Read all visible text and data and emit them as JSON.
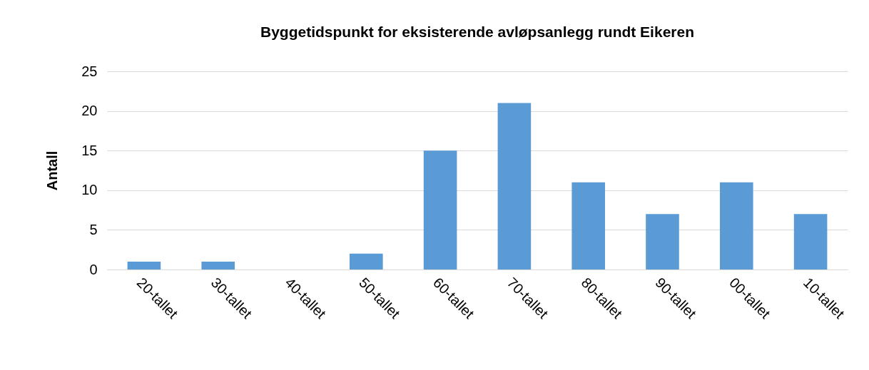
{
  "chart_data": {
    "type": "bar",
    "title": "Byggetidspunkt for eksisterende avløpsanlegg rundt Eikeren",
    "ylabel": "Antall",
    "categories": [
      "20-tallet",
      "30-tallet",
      "40-tallet",
      "50-tallet",
      "60-tallet",
      "70-tallet",
      "80-tallet",
      "90-tallet",
      "00-tallet",
      "10-tallet"
    ],
    "values": [
      1,
      1,
      0,
      2,
      15,
      21,
      11,
      7,
      11,
      7
    ],
    "color": "#5b9bd5",
    "ylim": [
      0,
      25
    ],
    "yticks": [
      0,
      5,
      10,
      15,
      20,
      25
    ],
    "grid": "y"
  }
}
